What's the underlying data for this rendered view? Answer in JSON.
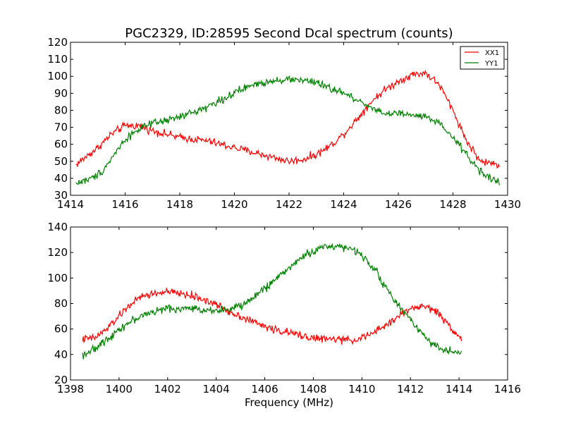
{
  "chart_data": [
    {
      "type": "line",
      "title": "PGC2329, ID:28595 Second Dcal spectrum (counts)",
      "xlabel": "",
      "ylabel": "",
      "xlim": [
        1414,
        1430
      ],
      "ylim": [
        30,
        120
      ],
      "xticks": [
        "1414",
        "1416",
        "1418",
        "1420",
        "1422",
        "1424",
        "1426",
        "1428",
        "1430"
      ],
      "yticks": [
        "30",
        "40",
        "50",
        "60",
        "70",
        "80",
        "90",
        "100",
        "110",
        "120"
      ],
      "grid": false,
      "legend": "top-right",
      "series": [
        {
          "name": "XX1",
          "color": "#ff0000",
          "x": [
            1414.2,
            1415.0,
            1415.5,
            1416.0,
            1416.5,
            1417.0,
            1417.5,
            1418.0,
            1418.5,
            1419.0,
            1419.5,
            1420.0,
            1420.5,
            1421.0,
            1421.5,
            1422.0,
            1422.5,
            1423.0,
            1423.5,
            1424.0,
            1424.5,
            1425.0,
            1425.5,
            1426.0,
            1426.5,
            1427.0,
            1427.5,
            1428.0,
            1428.5,
            1429.0,
            1429.7
          ],
          "values": [
            48,
            58,
            66,
            71,
            71,
            68,
            66,
            64,
            63,
            62,
            60,
            58,
            56,
            54,
            52,
            50,
            51,
            54,
            59,
            66,
            75,
            85,
            92,
            97,
            101,
            102,
            95,
            80,
            62,
            50,
            48
          ]
        },
        {
          "name": "YY1",
          "color": "#008000",
          "x": [
            1414.2,
            1414.8,
            1415.2,
            1415.6,
            1416.0,
            1416.5,
            1417.0,
            1417.5,
            1418.0,
            1418.5,
            1419.0,
            1419.5,
            1420.0,
            1420.5,
            1421.0,
            1421.5,
            1422.0,
            1422.5,
            1423.0,
            1423.5,
            1424.0,
            1424.5,
            1425.0,
            1425.5,
            1426.0,
            1426.5,
            1427.0,
            1427.5,
            1428.0,
            1428.5,
            1429.0,
            1429.7
          ],
          "values": [
            37,
            40,
            45,
            54,
            63,
            69,
            72,
            74,
            76,
            79,
            82,
            86,
            90,
            94,
            96,
            98,
            98,
            98,
            96,
            93,
            90,
            86,
            82,
            78,
            78,
            77,
            76,
            72,
            64,
            54,
            44,
            37
          ]
        }
      ]
    },
    {
      "type": "line",
      "title": "",
      "xlabel": "Frequency (MHz)",
      "ylabel": "",
      "xlim": [
        1398,
        1416
      ],
      "ylim": [
        20,
        140
      ],
      "xticks": [
        "1398",
        "1400",
        "1402",
        "1404",
        "1406",
        "1408",
        "1410",
        "1412",
        "1414",
        "1416"
      ],
      "yticks": [
        "20",
        "40",
        "60",
        "80",
        "100",
        "120",
        "140"
      ],
      "grid": false,
      "legend": "none",
      "series": [
        {
          "name": "XX1",
          "color": "#ff0000",
          "x": [
            1398.5,
            1399.0,
            1399.5,
            1400.0,
            1400.5,
            1401.0,
            1401.5,
            1402.0,
            1402.5,
            1403.0,
            1403.5,
            1404.0,
            1404.5,
            1405.0,
            1405.5,
            1406.0,
            1406.5,
            1407.0,
            1407.5,
            1408.0,
            1408.5,
            1409.0,
            1409.5,
            1410.0,
            1410.5,
            1411.0,
            1411.5,
            1412.0,
            1412.5,
            1413.0,
            1413.5,
            1414.1
          ],
          "values": [
            52,
            53,
            60,
            70,
            80,
            86,
            88,
            89,
            88,
            86,
            83,
            79,
            74,
            70,
            66,
            62,
            59,
            57,
            55,
            53,
            52,
            52,
            51,
            53,
            57,
            63,
            70,
            76,
            78,
            75,
            65,
            52
          ]
        },
        {
          "name": "YY1",
          "color": "#008000",
          "x": [
            1398.5,
            1399.0,
            1399.5,
            1400.0,
            1400.5,
            1401.0,
            1401.5,
            1402.0,
            1402.5,
            1403.0,
            1403.5,
            1404.0,
            1404.5,
            1405.0,
            1405.5,
            1406.0,
            1406.5,
            1407.0,
            1407.5,
            1408.0,
            1408.5,
            1409.0,
            1409.5,
            1410.0,
            1410.5,
            1411.0,
            1411.5,
            1412.0,
            1412.5,
            1413.0,
            1413.5,
            1414.1
          ],
          "values": [
            40,
            44,
            52,
            60,
            66,
            71,
            74,
            76,
            76,
            76,
            75,
            75,
            75,
            78,
            84,
            92,
            100,
            108,
            116,
            121,
            125,
            125,
            123,
            118,
            108,
            92,
            78,
            68,
            56,
            47,
            43,
            41
          ]
        }
      ]
    }
  ]
}
